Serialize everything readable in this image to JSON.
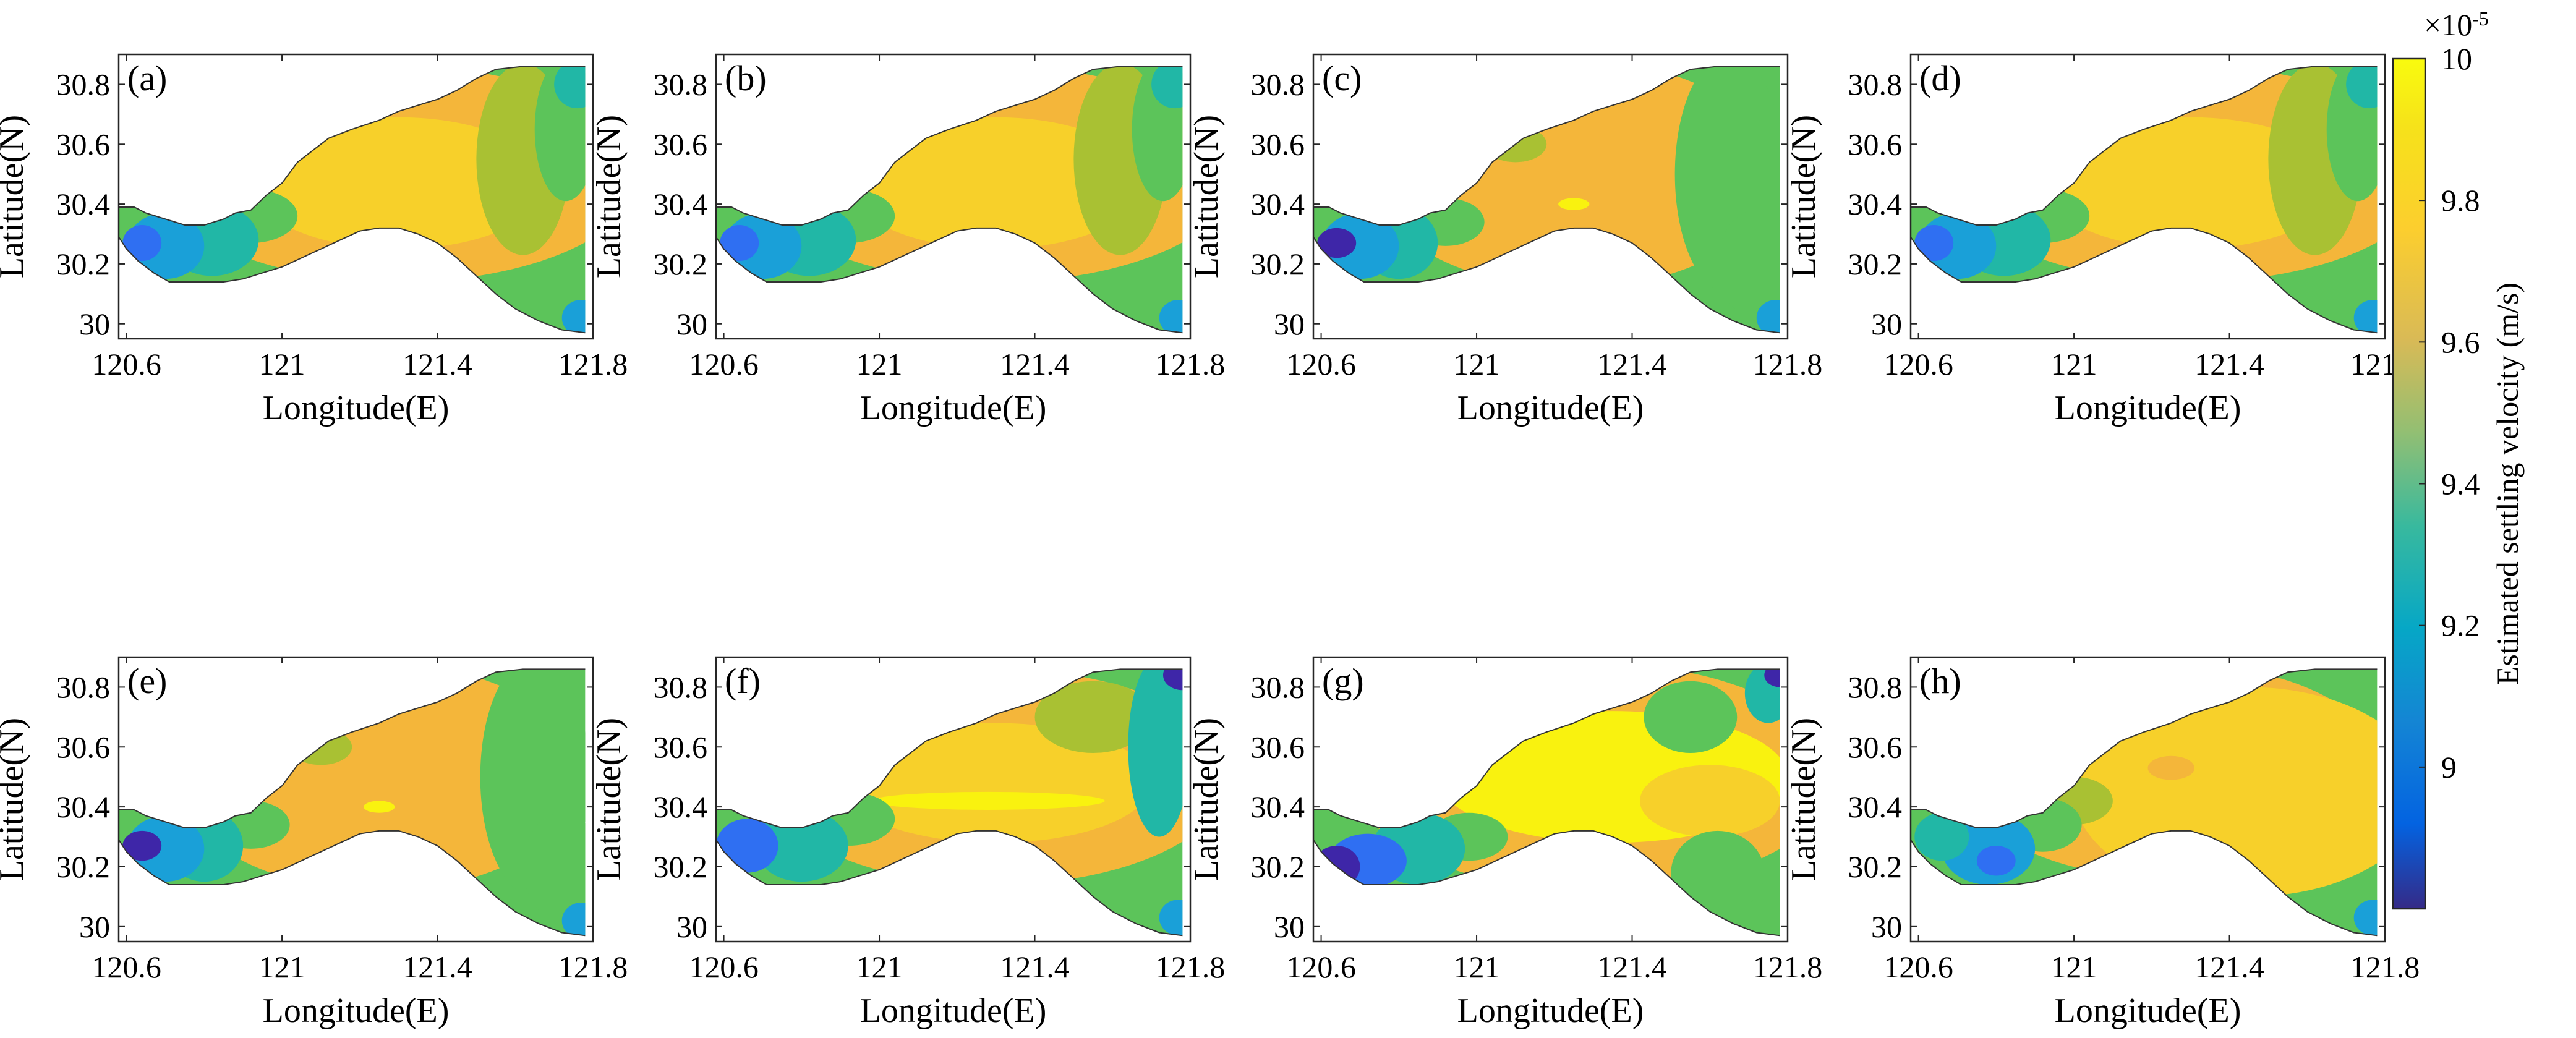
{
  "chart_data": {
    "type": "heatmap",
    "description_free": true,
    "panels": [
      {
        "label": "(a)",
        "pattern": "broad_yellow_core"
      },
      {
        "label": "(b)",
        "pattern": "broad_yellow_core"
      },
      {
        "label": "(c)",
        "pattern": "orange_with_green_east"
      },
      {
        "label": "(d)",
        "pattern": "broad_yellow_core"
      },
      {
        "label": "(e)",
        "pattern": "orange_with_green_east"
      },
      {
        "label": "(f)",
        "pattern": "banded_yellow"
      },
      {
        "label": "(g)",
        "pattern": "bright_yellow_patchy"
      },
      {
        "label": "(h)",
        "pattern": "yellow_east"
      }
    ],
    "xlabel": "Longitude(E)",
    "ylabel": "Latitude(N)",
    "xlim": [
      120.58,
      121.8
    ],
    "ylim": [
      29.95,
      30.9
    ],
    "xticks": [
      120.6,
      121,
      121.4,
      121.8
    ],
    "xtick_labels": [
      "120.6",
      "121",
      "121.4",
      "121.8"
    ],
    "yticks": [
      30,
      30.2,
      30.4,
      30.6,
      30.8
    ],
    "ytick_labels": [
      "30",
      "30.2",
      "30.4",
      "30.6",
      "30.8"
    ],
    "colorbar": {
      "label": "Estimated settling velocity (m/s)",
      "min": 8.8,
      "max": 10,
      "ticks": [
        9,
        9.2,
        9.4,
        9.6,
        9.8,
        10
      ],
      "tick_labels": [
        "9",
        "9.2",
        "9.4",
        "9.6",
        "9.8",
        "10"
      ],
      "exponent_label": "×10",
      "exponent_value": "-5",
      "colormap": "parula"
    },
    "colors": {
      "c88": "#3e26a8",
      "c90": "#2f6ff2",
      "c92": "#1aa0d8",
      "c94": "#21b7a6",
      "c96": "#5cc45a",
      "c97": "#a9c133",
      "c98": "#f4b63a",
      "c99": "#f7d02a",
      "c10": "#f9f20f"
    }
  }
}
